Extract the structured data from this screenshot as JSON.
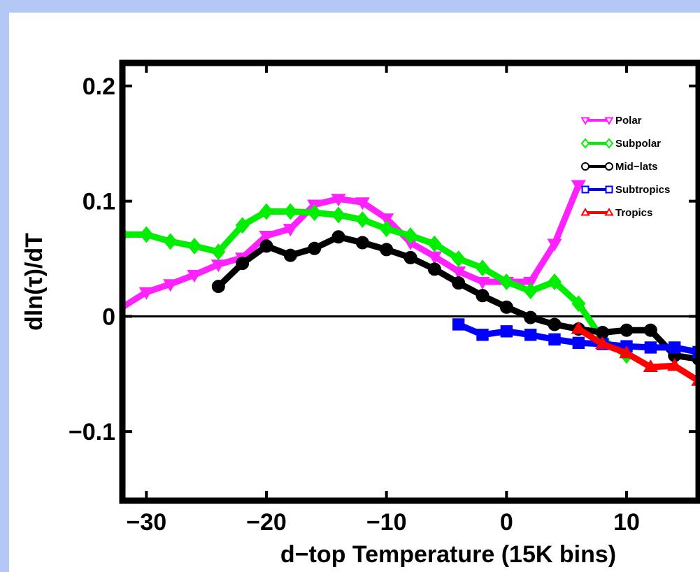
{
  "chart_data": {
    "type": "line",
    "xlabel": "d−top Temperature (15K bins)",
    "ylabel": "dln(τ)/dT",
    "xlim": [
      -32,
      16
    ],
    "ylim": [
      -0.16,
      0.22
    ],
    "xticks": [
      -30,
      -20,
      -10,
      0,
      10
    ],
    "xtick_labels": [
      "−30",
      "−20",
      "−10",
      "0",
      "10"
    ],
    "yticks": [
      -0.1,
      0,
      0.1,
      0.2
    ],
    "ytick_labels": [
      "−0.1",
      "0",
      "0.1",
      "0.2"
    ],
    "zero_line": true,
    "grid": false,
    "legend_position": "top-right",
    "series": [
      {
        "name": "Polar",
        "color": "#ff22ff",
        "marker": "triangle-down",
        "x": [
          -32,
          -30,
          -28,
          -26,
          -24,
          -22,
          -20,
          -18,
          -16,
          -14,
          -12,
          -10,
          -8,
          -6,
          -4,
          -2,
          0,
          2,
          4,
          6
        ],
        "y": [
          0.008,
          0.021,
          0.028,
          0.036,
          0.045,
          0.051,
          0.07,
          0.076,
          0.097,
          0.102,
          0.099,
          0.085,
          0.064,
          0.052,
          0.039,
          0.03,
          0.03,
          0.03,
          0.063,
          0.114
        ]
      },
      {
        "name": "Subpolar",
        "color": "#00ee00",
        "marker": "diamond",
        "x": [
          -32,
          -30,
          -28,
          -26,
          -24,
          -22,
          -20,
          -18,
          -16,
          -14,
          -12,
          -10,
          -8,
          -6,
          -4,
          -2,
          0,
          2,
          4,
          6,
          8,
          10
        ],
        "y": [
          0.071,
          0.071,
          0.065,
          0.061,
          0.056,
          0.079,
          0.091,
          0.091,
          0.09,
          0.088,
          0.084,
          0.076,
          0.07,
          0.063,
          0.05,
          0.042,
          0.03,
          0.022,
          0.03,
          0.011,
          -0.02,
          -0.034
        ]
      },
      {
        "name": "Mid−lats",
        "color": "#000000",
        "marker": "circle",
        "x": [
          -24,
          -22,
          -20,
          -18,
          -16,
          -14,
          -12,
          -10,
          -8,
          -6,
          -4,
          -2,
          0,
          2,
          4,
          6,
          8,
          10,
          12,
          14,
          16
        ],
        "y": [
          0.026,
          0.046,
          0.061,
          0.053,
          0.059,
          0.069,
          0.064,
          0.058,
          0.051,
          0.041,
          0.029,
          0.018,
          0.008,
          -0.001,
          -0.007,
          -0.011,
          -0.014,
          -0.012,
          -0.012,
          -0.034,
          -0.037
        ]
      },
      {
        "name": "Subtropics",
        "color": "#0000ff",
        "marker": "square",
        "x": [
          -4,
          -2,
          0,
          2,
          4,
          6,
          8,
          10,
          12,
          14,
          16
        ],
        "y": [
          -0.007,
          -0.016,
          -0.013,
          -0.016,
          -0.02,
          -0.023,
          -0.024,
          -0.026,
          -0.027,
          -0.027,
          -0.031
        ]
      },
      {
        "name": "Tropics",
        "color": "#ff0000",
        "marker": "triangle-up",
        "x": [
          6,
          8,
          10,
          12,
          14,
          16
        ],
        "y": [
          -0.011,
          -0.024,
          -0.032,
          -0.044,
          -0.043,
          -0.056
        ]
      }
    ]
  }
}
